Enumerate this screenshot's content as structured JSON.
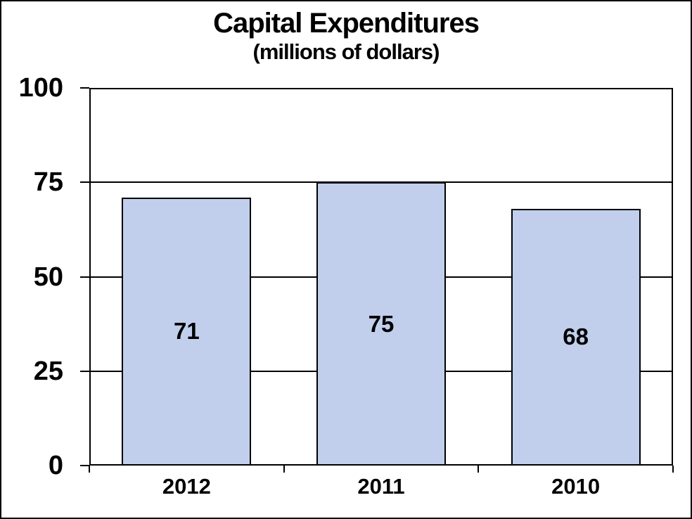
{
  "chart_data": {
    "type": "bar",
    "title": "Capital Expenditures",
    "subtitle": "(millions of dollars)",
    "categories": [
      "2012",
      "2011",
      "2010"
    ],
    "values": [
      71,
      75,
      68
    ],
    "data_labels": [
      "71",
      "75",
      "68"
    ],
    "ytick_labels": [
      "0",
      "25",
      "50",
      "75",
      "100"
    ],
    "yticks": [
      0,
      25,
      50,
      75,
      100
    ],
    "ylim": [
      0,
      100
    ],
    "xlabel": "",
    "ylabel": "",
    "grid": true,
    "legend": "none",
    "colors": {
      "bar_fill": "#C1CFEC",
      "bar_border": "#000000",
      "axis_line": "#000000",
      "text": "#000000",
      "background": "#FFFFFF"
    }
  }
}
